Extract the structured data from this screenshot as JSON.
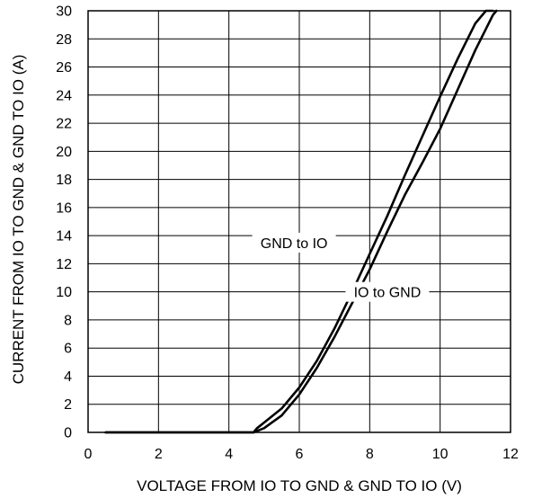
{
  "chart_data": {
    "type": "line",
    "title": "",
    "xlabel": "VOLTAGE FROM IO TO GND & GND TO IO (V)",
    "ylabel": "CURRENT FROM IO TO GND & GND TO IO (A)",
    "xlim": [
      0,
      12
    ],
    "ylim": [
      0,
      30
    ],
    "xticks": [
      0,
      2,
      4,
      6,
      8,
      10,
      12
    ],
    "yticks": [
      0,
      2,
      4,
      6,
      8,
      10,
      12,
      14,
      16,
      18,
      20,
      22,
      24,
      26,
      28,
      30
    ],
    "grid": true,
    "series": [
      {
        "name": "GND to IO",
        "x": [
          0.5,
          4.7,
          4.8,
          5.0,
          5.5,
          6.0,
          6.5,
          7.0,
          7.5,
          8.0,
          8.5,
          9.0,
          9.5,
          10.0,
          10.5,
          11.0,
          11.3,
          11.5
        ],
        "y": [
          0.0,
          0.0,
          0.3,
          0.7,
          1.7,
          3.2,
          5.1,
          7.4,
          10.0,
          12.7,
          15.4,
          18.3,
          21.1,
          23.9,
          26.6,
          29.1,
          30.0,
          30.0
        ]
      },
      {
        "name": "IO to GND",
        "x": [
          0.5,
          4.7,
          4.8,
          5.0,
          5.5,
          6.0,
          6.5,
          7.0,
          7.5,
          8.0,
          8.5,
          9.0,
          9.5,
          10.0,
          10.5,
          11.0,
          11.5,
          11.6
        ],
        "y": [
          0.0,
          0.0,
          0.1,
          0.3,
          1.2,
          2.7,
          4.6,
          6.8,
          9.2,
          11.6,
          14.3,
          16.9,
          19.2,
          21.6,
          24.4,
          27.2,
          29.7,
          30.0
        ]
      }
    ],
    "annotations": [
      {
        "text": "GND to IO",
        "x": 5.85,
        "y": 13.5
      },
      {
        "text": "IO to GND",
        "x": 8.5,
        "y": 10.0
      }
    ]
  }
}
